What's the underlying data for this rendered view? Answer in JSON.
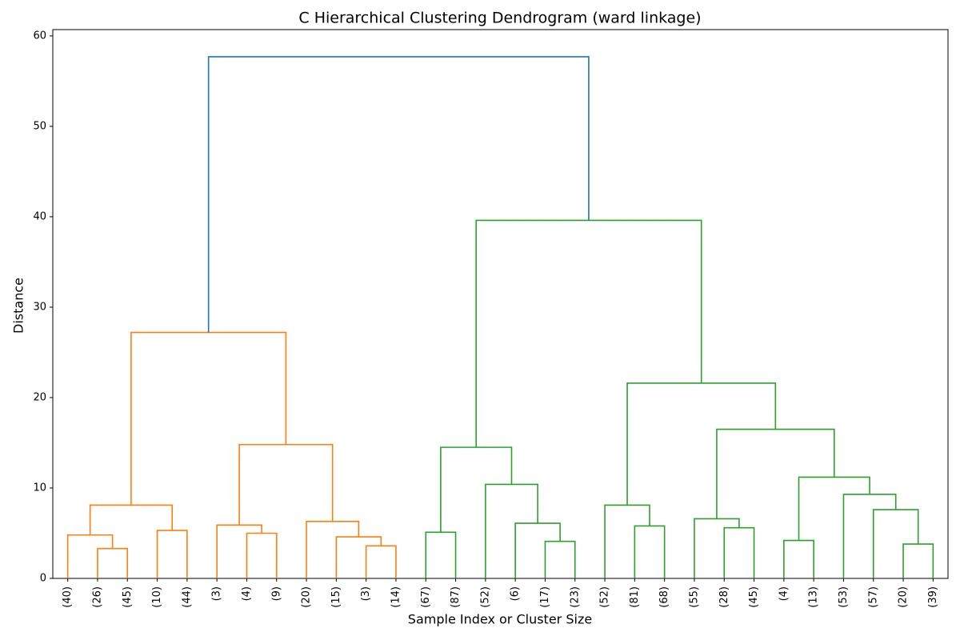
{
  "chart_data": {
    "type": "dendrogram",
    "title": "C Hierarchical Clustering Dendrogram (ward linkage)",
    "xlabel": "Sample Index or Cluster Size",
    "ylabel": "Distance",
    "leaves": [
      "(40)",
      "(26)",
      "(45)",
      "(10)",
      "(44)",
      "(3)",
      "(4)",
      "(9)",
      "(20)",
      "(15)",
      "(3)",
      "(14)",
      "(67)",
      "(87)",
      "(52)",
      "(6)",
      "(17)",
      "(23)",
      "(52)",
      "(81)",
      "(68)",
      "(55)",
      "(28)",
      "(45)",
      "(4)",
      "(13)",
      "(53)",
      "(57)",
      "(20)",
      "(39)"
    ],
    "links": [
      {
        "children": [
          1,
          2
        ],
        "height": 3.3,
        "color": "#ff7f0e"
      },
      {
        "children": [
          0,
          30
        ],
        "height": 4.8,
        "color": "#ff7f0e"
      },
      {
        "children": [
          3,
          4
        ],
        "height": 5.3,
        "color": "#ff7f0e"
      },
      {
        "children": [
          31,
          32
        ],
        "height": 8.1,
        "color": "#ff7f0e"
      },
      {
        "children": [
          6,
          7
        ],
        "height": 5.0,
        "color": "#ff7f0e"
      },
      {
        "children": [
          5,
          34
        ],
        "height": 5.9,
        "color": "#ff7f0e"
      },
      {
        "children": [
          10,
          11
        ],
        "height": 3.6,
        "color": "#ff7f0e"
      },
      {
        "children": [
          9,
          36
        ],
        "height": 4.6,
        "color": "#ff7f0e"
      },
      {
        "children": [
          8,
          37
        ],
        "height": 6.3,
        "color": "#ff7f0e"
      },
      {
        "children": [
          35,
          38
        ],
        "height": 14.8,
        "color": "#ff7f0e"
      },
      {
        "children": [
          33,
          39
        ],
        "height": 27.2,
        "color": "#ff7f0e"
      },
      {
        "children": [
          12,
          13
        ],
        "height": 5.1,
        "color": "#2ca02c"
      },
      {
        "children": [
          16,
          17
        ],
        "height": 4.1,
        "color": "#2ca02c"
      },
      {
        "children": [
          15,
          42
        ],
        "height": 6.1,
        "color": "#2ca02c"
      },
      {
        "children": [
          14,
          43
        ],
        "height": 10.4,
        "color": "#2ca02c"
      },
      {
        "children": [
          41,
          44
        ],
        "height": 14.5,
        "color": "#2ca02c"
      },
      {
        "children": [
          19,
          20
        ],
        "height": 5.8,
        "color": "#2ca02c"
      },
      {
        "children": [
          18,
          46
        ],
        "height": 8.1,
        "color": "#2ca02c"
      },
      {
        "children": [
          22,
          23
        ],
        "height": 5.6,
        "color": "#2ca02c"
      },
      {
        "children": [
          21,
          48
        ],
        "height": 6.6,
        "color": "#2ca02c"
      },
      {
        "children": [
          24,
          25
        ],
        "height": 4.2,
        "color": "#2ca02c"
      },
      {
        "children": [
          28,
          29
        ],
        "height": 3.8,
        "color": "#2ca02c"
      },
      {
        "children": [
          27,
          51
        ],
        "height": 7.6,
        "color": "#2ca02c"
      },
      {
        "children": [
          26,
          52
        ],
        "height": 9.3,
        "color": "#2ca02c"
      },
      {
        "children": [
          50,
          53
        ],
        "height": 11.2,
        "color": "#2ca02c"
      },
      {
        "children": [
          49,
          54
        ],
        "height": 16.5,
        "color": "#2ca02c"
      },
      {
        "children": [
          47,
          55
        ],
        "height": 21.6,
        "color": "#2ca02c"
      },
      {
        "children": [
          45,
          56
        ],
        "height": 39.6,
        "color": "#2ca02c"
      },
      {
        "children": [
          40,
          57
        ],
        "height": 57.7,
        "color": "#1f77b4"
      }
    ],
    "ylim": [
      0,
      60.7
    ],
    "yticks": [
      0,
      10,
      20,
      30,
      40,
      50,
      60
    ]
  }
}
